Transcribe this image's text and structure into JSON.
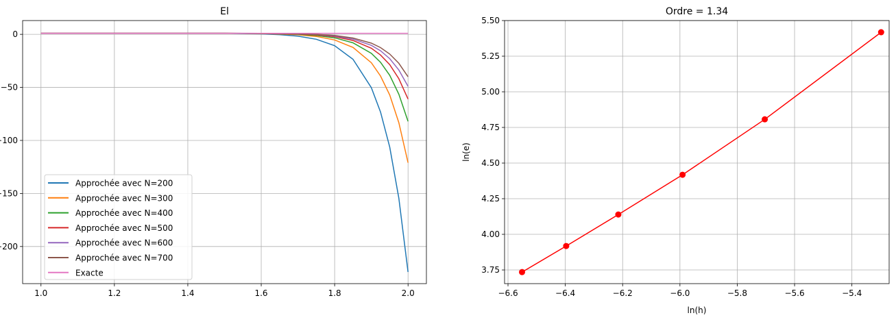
{
  "chart_data": [
    {
      "type": "line",
      "title": "El",
      "xlabel": "",
      "ylabel": "",
      "xlim": [
        0.95,
        2.05
      ],
      "ylim": [
        -235,
        13
      ],
      "xticks": [
        1.0,
        1.2,
        1.4,
        1.6,
        1.8,
        2.0
      ],
      "xtick_labels": [
        "1.0",
        "1.2",
        "1.4",
        "1.6",
        "1.8",
        "2.0"
      ],
      "yticks": [
        0,
        -50,
        -100,
        -150,
        -200
      ],
      "ytick_labels": [
        "0",
        "−50",
        "−100",
        "−150",
        "−200"
      ],
      "grid": true,
      "legend": "lower-left",
      "x": [
        1.0,
        1.1,
        1.2,
        1.3,
        1.4,
        1.5,
        1.6,
        1.65,
        1.7,
        1.75,
        1.8,
        1.85,
        1.9,
        1.925,
        1.95,
        1.975,
        2.0
      ],
      "series": [
        {
          "name": "Approchée avec N=200",
          "color": "#1f77b4",
          "values": [
            1,
            1,
            1,
            1,
            1,
            1,
            0.4,
            -0.3,
            -1.7,
            -4.6,
            -10.7,
            -23.5,
            -50.3,
            -73.3,
            -106.3,
            -154.5,
            -224
          ]
        },
        {
          "name": "Approchée avec N=300",
          "color": "#ff7f0e",
          "values": [
            1,
            1,
            1,
            1,
            1,
            1,
            0.7,
            0.3,
            -0.4,
            -2.0,
            -5.3,
            -12.3,
            -26.8,
            -39.3,
            -57.2,
            -83.3,
            -121
          ]
        },
        {
          "name": "Approchée avec N=400",
          "color": "#2ca02c",
          "values": [
            1,
            1,
            1,
            1,
            1,
            1,
            0.8,
            0.5,
            0.0,
            -1.1,
            -3.3,
            -8.0,
            -17.9,
            -26.4,
            -38.6,
            -56.4,
            -82
          ]
        },
        {
          "name": "Approchée avec N=500",
          "color": "#d62728",
          "values": [
            1,
            1,
            1,
            1,
            1,
            1,
            0.8,
            0.6,
            0.3,
            -0.5,
            -2.2,
            -5.8,
            -13.1,
            -19.5,
            -28.6,
            -41.8,
            -61
          ]
        },
        {
          "name": "Approchée avec N=600",
          "color": "#9467bd",
          "values": [
            1,
            1,
            1,
            1,
            1,
            1,
            0.9,
            0.7,
            0.4,
            -0.2,
            -1.6,
            -4.5,
            -10.4,
            -15.5,
            -22.9,
            -33.6,
            -49
          ]
        },
        {
          "name": "Approchée avec N=700",
          "color": "#8c564b",
          "values": [
            1,
            1,
            1,
            1,
            1,
            1,
            0.9,
            0.8,
            0.5,
            0.0,
            -1.1,
            -3.5,
            -8.3,
            -12.5,
            -18.6,
            -27.3,
            -40
          ]
        },
        {
          "name": "Exacte",
          "color": "#e377c2",
          "values": [
            1,
            1,
            1,
            1,
            1,
            1,
            1,
            1,
            1,
            1,
            1,
            1,
            1,
            1,
            1,
            1,
            1
          ]
        }
      ]
    },
    {
      "type": "line",
      "title": "Ordre = 1.34",
      "xlabel": "ln(h)",
      "ylabel": "ln(e)",
      "xlim": [
        -6.612,
        -5.27
      ],
      "ylim": [
        3.654,
        5.5
      ],
      "xticks": [
        -6.6,
        -6.4,
        -6.2,
        -6.0,
        -5.8,
        -5.6,
        -5.4
      ],
      "xtick_labels": [
        "−6.6",
        "−6.4",
        "−6.2",
        "−6.0",
        "−5.8",
        "−5.6",
        "−5.4"
      ],
      "yticks": [
        3.75,
        4.0,
        4.25,
        4.5,
        4.75,
        5.0,
        5.25,
        5.5
      ],
      "ytick_labels": [
        "3.75",
        "4.00",
        "4.25",
        "4.50",
        "4.75",
        "5.00",
        "5.25",
        "5.50"
      ],
      "grid": true,
      "series": [
        {
          "color": "#ff0000",
          "marker": "circle",
          "x": [
            -6.551,
            -6.397,
            -6.215,
            -5.991,
            -5.704,
            -5.298
          ],
          "values": [
            3.735,
            3.918,
            4.139,
            4.418,
            4.807,
            5.418
          ]
        }
      ]
    }
  ]
}
